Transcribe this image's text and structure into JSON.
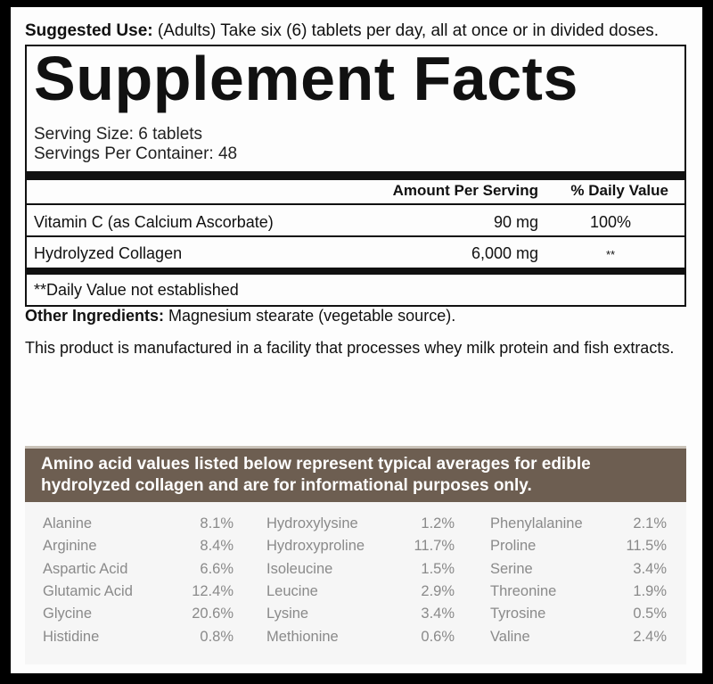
{
  "suggested_use": {
    "label": "Suggested Use:",
    "text": "(Adults) Take six (6) tablets per day, all at once or in divided doses."
  },
  "facts": {
    "title": "Supplement Facts",
    "serving_size": "Serving Size: 6 tablets",
    "servings_per_container": "Servings Per Container: 48",
    "header": {
      "amount": "Amount Per Serving",
      "daily_value": "% Daily Value"
    },
    "rows": [
      {
        "name": "Vitamin C (as Calcium Ascorbate)",
        "amount": "90 mg",
        "daily_value": "100%"
      },
      {
        "name": "Hydrolyzed Collagen",
        "amount": "6,000 mg",
        "daily_value": "**"
      }
    ],
    "footnote": "**Daily Value not established"
  },
  "other_ingredients": {
    "label": "Other Ingredients:",
    "text": "Magnesium stearate (vegetable source)."
  },
  "facility_note": "This product is manufactured in a facility that processes whey milk protein and fish extracts.",
  "amino_acids": {
    "intro": "Amino acid values listed below represent typical averages for edible hydrolyzed collagen and are for informational purposes only.",
    "columns": [
      [
        {
          "name": "Alanine",
          "value": "8.1%"
        },
        {
          "name": "Arginine",
          "value": "8.4%"
        },
        {
          "name": "Aspartic Acid",
          "value": "6.6%"
        },
        {
          "name": "Glutamic Acid",
          "value": "12.4%"
        },
        {
          "name": "Glycine",
          "value": "20.6%"
        },
        {
          "name": "Histidine",
          "value": "0.8%"
        }
      ],
      [
        {
          "name": "Hydroxylysine",
          "value": "1.2%"
        },
        {
          "name": "Hydroxyproline",
          "value": "11.7%"
        },
        {
          "name": "Isoleucine",
          "value": "1.5%"
        },
        {
          "name": "Leucine",
          "value": "2.9%"
        },
        {
          "name": "Lysine",
          "value": "3.4%"
        },
        {
          "name": "Methionine",
          "value": "0.6%"
        }
      ],
      [
        {
          "name": "Phenylalanine",
          "value": "2.1%"
        },
        {
          "name": "Proline",
          "value": "11.5%"
        },
        {
          "name": "Serine",
          "value": "3.4%"
        },
        {
          "name": "Threonine",
          "value": "1.9%"
        },
        {
          "name": "Tyrosine",
          "value": "0.5%"
        },
        {
          "name": "Valine",
          "value": "2.4%"
        }
      ]
    ]
  }
}
